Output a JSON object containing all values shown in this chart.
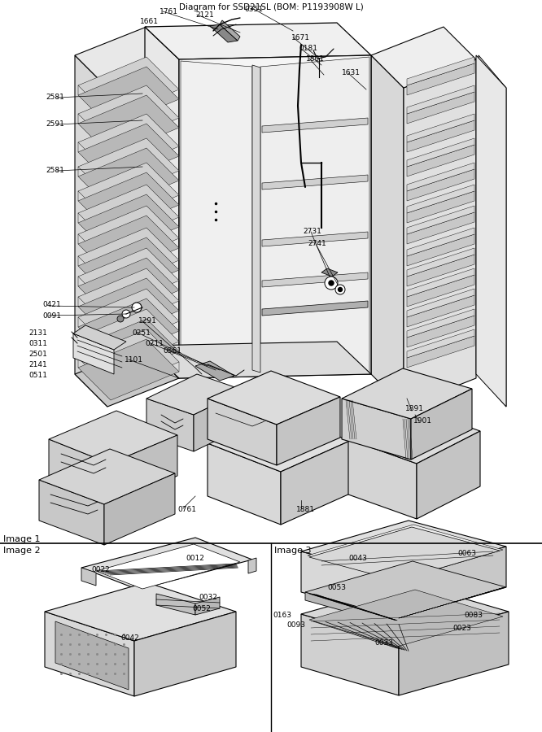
{
  "title": "Diagram for SSD21SL (BOM: P1193908W L)",
  "bg_color": "#ffffff",
  "fig_width": 6.66,
  "fig_height": 9.0,
  "dpi": 100,
  "image1_label": "Image 1",
  "image2_label": "Image 2",
  "image3_label": "Image 3",
  "line_color": "#000000",
  "text_color": "#000000",
  "label_fontsize": 6.5,
  "title_fontsize": 7.5
}
